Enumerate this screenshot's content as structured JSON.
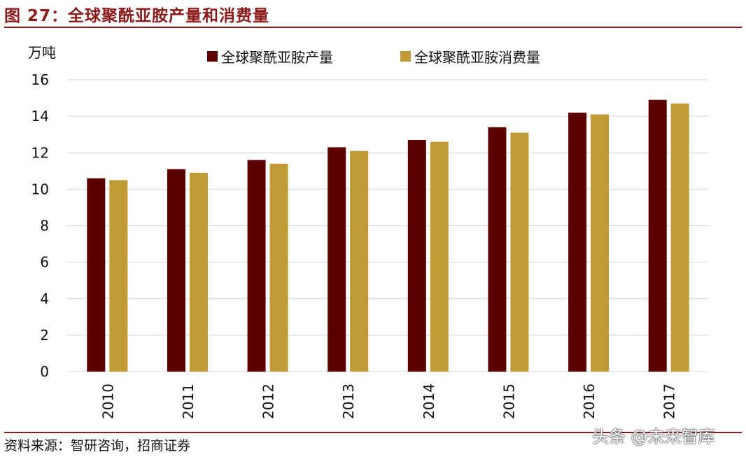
{
  "figure": {
    "title": "图 27：全球聚酰亚胺产量和消费量",
    "source": "资料来源：智研咨询，招商证券",
    "watermark": "头条 @未来智库"
  },
  "colors": {
    "accent": "#8b1a1a",
    "production": "#5c0000",
    "consumption": "#c09a36",
    "grid": "#d9d9d9"
  },
  "chart_data": {
    "type": "bar",
    "ylabel": "万吨",
    "categories": [
      "2010",
      "2011",
      "2012",
      "2013",
      "2014",
      "2015",
      "2016",
      "2017"
    ],
    "series": [
      {
        "name": "全球聚酰亚胺产量",
        "values": [
          10.6,
          11.1,
          11.6,
          12.3,
          12.7,
          13.4,
          14.2,
          14.9
        ]
      },
      {
        "name": "全球聚酰亚胺消费量",
        "values": [
          10.5,
          10.9,
          11.4,
          12.1,
          12.6,
          13.1,
          14.1,
          14.7
        ]
      }
    ],
    "ylim": [
      0,
      16
    ],
    "yticks": [
      "0",
      "2",
      "4",
      "6",
      "8",
      "10",
      "12",
      "14",
      "16"
    ],
    "grid": true,
    "legend_position": "top"
  }
}
